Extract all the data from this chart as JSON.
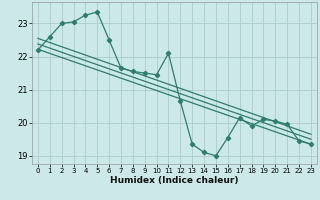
{
  "main_data_x": [
    0,
    1,
    2,
    3,
    4,
    5,
    6,
    7,
    8,
    9,
    10,
    11,
    12,
    13,
    14,
    15,
    16,
    17,
    18,
    19,
    20,
    21,
    22,
    23
  ],
  "main_data_y": [
    22.2,
    22.6,
    23.0,
    23.05,
    23.25,
    23.35,
    22.5,
    21.65,
    21.55,
    21.5,
    21.45,
    22.1,
    20.65,
    19.35,
    19.1,
    19.0,
    19.55,
    20.15,
    19.9,
    20.1,
    20.05,
    19.95,
    19.45,
    19.35
  ],
  "trend1_x": [
    0,
    23
  ],
  "trend1_y": [
    22.55,
    19.65
  ],
  "trend2_x": [
    0,
    23
  ],
  "trend2_y": [
    22.38,
    19.5
  ],
  "trend3_x": [
    0,
    23
  ],
  "trend3_y": [
    22.22,
    19.35
  ],
  "color": "#2e7d6e",
  "bg_color": "#cce8e8",
  "grid_color": "#aacccc",
  "xlabel": "Humidex (Indice chaleur)",
  "ylim": [
    18.75,
    23.65
  ],
  "xlim": [
    -0.5,
    23.5
  ],
  "yticks": [
    19,
    20,
    21,
    22,
    23
  ],
  "xticks": [
    0,
    1,
    2,
    3,
    4,
    5,
    6,
    7,
    8,
    9,
    10,
    11,
    12,
    13,
    14,
    15,
    16,
    17,
    18,
    19,
    20,
    21,
    22,
    23
  ]
}
